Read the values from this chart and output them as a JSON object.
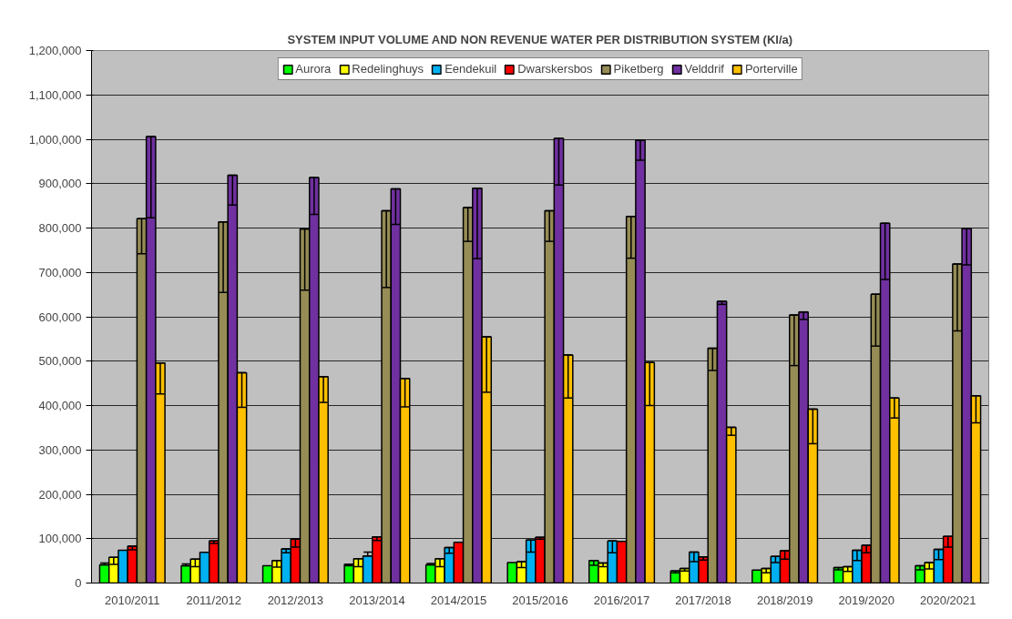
{
  "chart_data": {
    "type": "bar",
    "title": "SYSTEM INPUT VOLUME AND NON REVENUE WATER PER DISTRIBUTION SYSTEM (Kl/a)",
    "categories": [
      "2010/2011",
      "2011/2012",
      "2012/2013",
      "2013/2014",
      "2014/2015",
      "2015/2016",
      "2016/2017",
      "2017/2018",
      "2018/2019",
      "2019/2020",
      "2020/2021"
    ],
    "series": [
      {
        "name": "Aurora",
        "color": "#00ff00",
        "values": [
          41000,
          39000,
          39000,
          42000,
          41000,
          46000,
          51000,
          27000,
          29000,
          35000,
          39000
        ],
        "errors": [
          [
            41000,
            45000
          ],
          [
            39000,
            43000
          ],
          null,
          [
            39000,
            42000
          ],
          [
            41000,
            44000
          ],
          null,
          [
            40000,
            51000
          ],
          [
            23000,
            27000
          ],
          null,
          [
            30000,
            35000
          ],
          [
            30000,
            39000
          ]
        ]
      },
      {
        "name": "Redelinghuys",
        "color": "#ffff00",
        "values": [
          58000,
          54000,
          51000,
          55000,
          55000,
          48000,
          45000,
          33000,
          33000,
          37000,
          46000
        ],
        "errors": [
          [
            42000,
            58000
          ],
          [
            37000,
            54000
          ],
          [
            36000,
            51000
          ],
          [
            37000,
            55000
          ],
          [
            37000,
            55000
          ],
          [
            35000,
            48000
          ],
          [
            37000,
            45000
          ],
          [
            27000,
            33000
          ],
          [
            23000,
            33000
          ],
          [
            26000,
            37000
          ],
          [
            32000,
            46000
          ]
        ]
      },
      {
        "name": "Eendekuil",
        "color": "#00b0f0",
        "values": [
          74000,
          69000,
          77000,
          61000,
          80000,
          97000,
          95000,
          70000,
          60000,
          74000,
          76000
        ],
        "errors": [
          null,
          null,
          [
            68000,
            77000
          ],
          [
            61000,
            70000
          ],
          [
            67000,
            80000
          ],
          [
            70000,
            97000
          ],
          [
            68000,
            95000
          ],
          [
            48000,
            70000
          ],
          [
            46000,
            60000
          ],
          [
            51000,
            74000
          ],
          [
            53000,
            76000
          ]
        ]
      },
      {
        "name": "Dwarskersbos",
        "color": "#ff0000",
        "values": [
          83000,
          95000,
          99000,
          104000,
          92000,
          103000,
          94000,
          59000,
          73000,
          85000,
          105000
        ],
        "errors": [
          [
            75000,
            83000
          ],
          [
            89000,
            95000
          ],
          [
            81000,
            99000
          ],
          [
            96000,
            104000
          ],
          null,
          [
            99000,
            103000
          ],
          null,
          [
            52000,
            59000
          ],
          [
            54000,
            73000
          ],
          [
            68000,
            85000
          ],
          [
            81000,
            105000
          ]
        ]
      },
      {
        "name": "Piketberg",
        "color": "#968c55",
        "values": [
          821000,
          814000,
          798000,
          839000,
          846000,
          839000,
          826000,
          529000,
          604000,
          651000,
          719000
        ],
        "errors": [
          [
            742000,
            821000
          ],
          [
            655000,
            814000
          ],
          [
            660000,
            798000
          ],
          [
            666000,
            839000
          ],
          [
            770000,
            846000
          ],
          [
            770000,
            839000
          ],
          [
            732000,
            826000
          ],
          [
            479000,
            529000
          ],
          [
            490000,
            604000
          ],
          [
            534000,
            651000
          ],
          [
            568000,
            719000
          ]
        ]
      },
      {
        "name": "Velddrif",
        "color": "#7030a0",
        "values": [
          1006000,
          919000,
          914000,
          888000,
          890000,
          1002000,
          998000,
          635000,
          611000,
          811000,
          799000
        ],
        "errors": [
          [
            823000,
            1006000
          ],
          [
            852000,
            919000
          ],
          [
            831000,
            914000
          ],
          [
            808000,
            888000
          ],
          [
            731000,
            890000
          ],
          [
            897000,
            1002000
          ],
          [
            953000,
            998000
          ],
          [
            628000,
            635000
          ],
          [
            594000,
            611000
          ],
          [
            684000,
            811000
          ],
          [
            717000,
            799000
          ]
        ]
      },
      {
        "name": "Porterville",
        "color": "#ffc000",
        "values": [
          496000,
          474000,
          465000,
          461000,
          555000,
          514000,
          497000,
          351000,
          392000,
          417000,
          422000
        ],
        "errors": [
          [
            426000,
            496000
          ],
          [
            396000,
            474000
          ],
          [
            407000,
            465000
          ],
          [
            397000,
            461000
          ],
          [
            430000,
            555000
          ],
          [
            417000,
            514000
          ],
          [
            400000,
            497000
          ],
          [
            333000,
            351000
          ],
          [
            314000,
            392000
          ],
          [
            372000,
            417000
          ],
          [
            361000,
            422000
          ]
        ]
      }
    ],
    "ylim": [
      0,
      1200000
    ],
    "yticks": [
      {
        "value": 0,
        "label": "0"
      },
      {
        "value": 100000,
        "label": "100,000"
      },
      {
        "value": 200000,
        "label": "200,000"
      },
      {
        "value": 300000,
        "label": "300,000"
      },
      {
        "value": 400000,
        "label": "400,000"
      },
      {
        "value": 500000,
        "label": "500,000"
      },
      {
        "value": 600000,
        "label": "600,000"
      },
      {
        "value": 700000,
        "label": "700,000"
      },
      {
        "value": 800000,
        "label": "800,000"
      },
      {
        "value": 900000,
        "label": "900,000"
      },
      {
        "value": 1000000,
        "label": "1,000,000"
      },
      {
        "value": 1100000,
        "label": "1,100,000"
      },
      {
        "value": 1200000,
        "label": "1,200,000"
      }
    ],
    "grid": "y",
    "legend": "top"
  }
}
